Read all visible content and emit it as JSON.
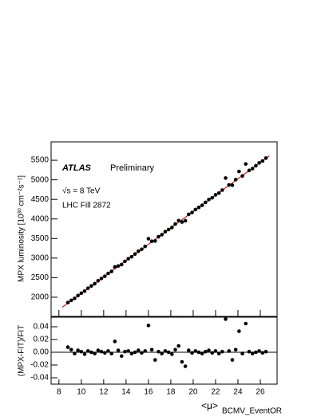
{
  "chart_data": [
    {
      "type": "scatter",
      "experiment": "ATLAS",
      "annotations": [
        "Preliminary",
        "√s = 8 TeV",
        "LHC Fill 2872"
      ],
      "y_label": "MPX luminosity [10³⁰ cm⁻²s⁻¹]",
      "color": "#000000",
      "x": [
        8.8,
        9.1,
        9.4,
        9.7,
        10.0,
        10.3,
        10.6,
        10.9,
        11.2,
        11.5,
        11.8,
        12.1,
        12.4,
        12.7,
        13.0,
        13.3,
        13.6,
        13.9,
        14.2,
        14.5,
        14.8,
        15.1,
        15.4,
        15.7,
        16.0,
        16.3,
        16.6,
        16.9,
        17.2,
        17.5,
        17.8,
        18.1,
        18.4,
        18.7,
        19.0,
        19.3,
        19.6,
        19.9,
        20.2,
        20.5,
        20.8,
        21.1,
        21.4,
        21.7,
        22.0,
        22.3,
        22.6,
        22.9,
        23.2,
        23.5,
        23.8,
        24.1,
        24.4,
        24.7,
        25.0,
        25.3,
        25.6,
        25.9,
        26.2,
        26.5
      ],
      "values": [
        1864,
        1920,
        1971,
        2043,
        2102,
        2156,
        2230,
        2288,
        2346,
        2421,
        2479,
        2536,
        2607,
        2659,
        2773,
        2798,
        2835,
        2918,
        2984,
        3034,
        3103,
        3175,
        3225,
        3298,
        3495,
        3430,
        3438,
        3546,
        3598,
        3675,
        3730,
        3782,
        3871,
        3958,
        3921,
        3955,
        4119,
        4165,
        4240,
        4295,
        4349,
        4424,
        4496,
        4541,
        4617,
        4661,
        4738,
        5045,
        4869,
        4862,
        5004,
        5213,
        5099,
        5405,
        5240,
        5287,
        5360,
        5434,
        5480,
        5554
      ],
      "fit": {
        "x": [
          8.3,
          26.8
        ],
        "values": [
          1745,
          5611
        ],
        "color": "#cc2222"
      },
      "xlim": [
        7.3,
        27.5
      ],
      "xticks": [
        8,
        10,
        12,
        14,
        16,
        18,
        20,
        22,
        24,
        26
      ],
      "ylim": [
        1510,
        5970
      ],
      "yticks": [
        2000,
        2500,
        3000,
        3500,
        4000,
        4500,
        5000,
        5500
      ]
    },
    {
      "type": "scatter",
      "y_label": "(MPX-FIT)/FIT",
      "x_label": "<μ>",
      "x_label_sub": "BCMV_EventOR",
      "color": "#000000",
      "x": [
        8.8,
        9.1,
        9.4,
        9.7,
        10.0,
        10.3,
        10.6,
        10.9,
        11.2,
        11.5,
        11.8,
        12.1,
        12.4,
        12.7,
        13.0,
        13.3,
        13.6,
        13.9,
        14.2,
        14.5,
        14.8,
        15.1,
        15.4,
        15.7,
        16.0,
        16.3,
        16.6,
        16.9,
        17.2,
        17.5,
        17.8,
        18.1,
        18.4,
        18.7,
        19.0,
        19.3,
        19.6,
        19.9,
        20.2,
        20.5,
        20.8,
        21.1,
        21.4,
        21.7,
        22.0,
        22.3,
        22.6,
        22.9,
        23.2,
        23.5,
        23.8,
        24.1,
        24.4,
        24.7,
        25.0,
        25.3,
        25.6,
        25.9,
        26.2,
        26.5
      ],
      "values": [
        0.008,
        0.004,
        -0.002,
        0.003,
        0.001,
        -0.003,
        0.002,
        0.0,
        -0.002,
        0.003,
        0.001,
        -0.001,
        0.002,
        -0.002,
        0.017,
        0.003,
        -0.006,
        0.001,
        0.002,
        -0.002,
        0.0,
        0.003,
        -0.001,
        0.002,
        0.042,
        0.004,
        -0.012,
        0.001,
        -0.002,
        0.002,
        0.0,
        -0.003,
        0.004,
        0.01,
        -0.015,
        -0.022,
        0.003,
        -0.001,
        0.002,
        0.0,
        -0.002,
        0.001,
        0.003,
        -0.001,
        0.002,
        -0.002,
        0.001,
        0.052,
        0.002,
        -0.012,
        0.004,
        0.033,
        -0.002,
        0.045,
        0.001,
        -0.002,
        0.0,
        0.002,
        -0.001,
        0.001
      ],
      "xlim": [
        7.3,
        27.5
      ],
      "xticks": [
        8,
        10,
        12,
        14,
        16,
        18,
        20,
        22,
        24,
        26
      ],
      "ylim": [
        -0.05,
        0.055
      ],
      "yticks": [
        -0.04,
        -0.02,
        {
          "value": 0,
          "label": "0.00"
        },
        0.02,
        0.04
      ]
    }
  ]
}
